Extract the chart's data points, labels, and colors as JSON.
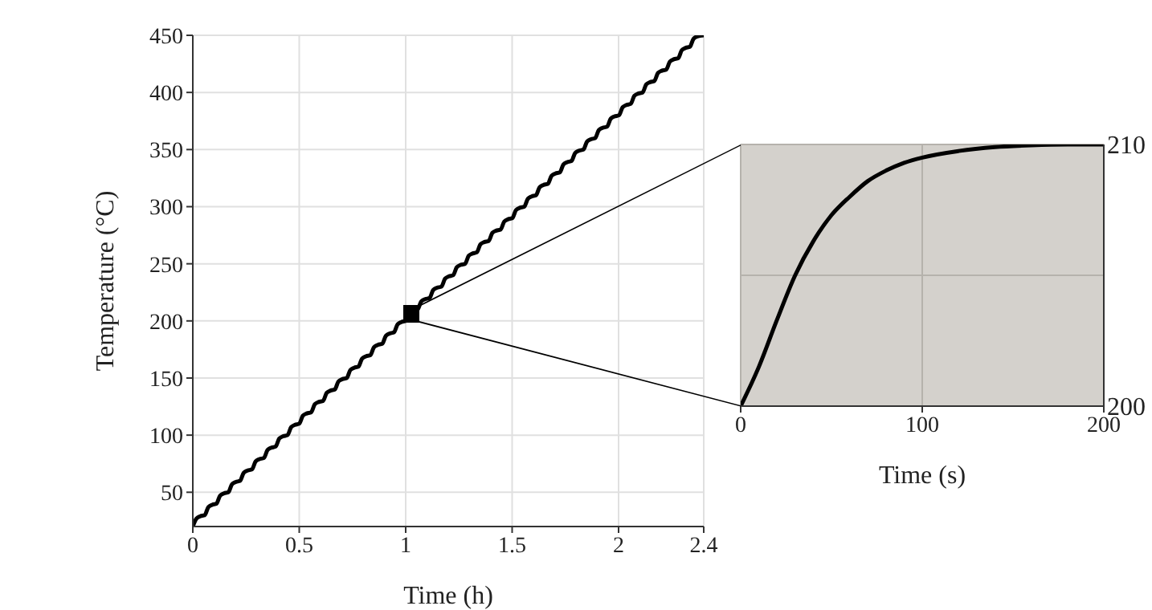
{
  "chart_data": [
    {
      "type": "line",
      "xlabel": "Time (h)",
      "ylabel": "Temperature (°C)",
      "xlim": [
        0,
        2.4
      ],
      "xticks": [
        0,
        0.5,
        1,
        1.5,
        2,
        2.4
      ],
      "ylim": [
        20,
        450
      ],
      "yticks": [
        50,
        100,
        150,
        200,
        250,
        300,
        350,
        400,
        450
      ],
      "grid": true,
      "series": [
        {
          "color": "#000000",
          "x": [
            0,
            0.017,
            0.035,
            0.056,
            0.073,
            0.091,
            0.111,
            0.128,
            0.146,
            0.167,
            0.184,
            0.202,
            0.222,
            0.239,
            0.257,
            0.278,
            0.295,
            0.313,
            0.334,
            0.351,
            0.369,
            0.389,
            0.406,
            0.424,
            0.445,
            0.462,
            0.48,
            0.5,
            0.517,
            0.535,
            0.556,
            0.573,
            0.591,
            0.612,
            0.629,
            0.647,
            0.667,
            0.684,
            0.702,
            0.723,
            0.74,
            0.758,
            0.778,
            0.795,
            0.813,
            0.834,
            0.851,
            0.869,
            0.89,
            0.907,
            0.925,
            0.945,
            0.962,
            0.98,
            1.001,
            1.018,
            1.036,
            1.056,
            1.073,
            1.091,
            1.112,
            1.129,
            1.147,
            1.168,
            1.185,
            1.203,
            1.223,
            1.24,
            1.258,
            1.279,
            1.296,
            1.314,
            1.334,
            1.351,
            1.369,
            1.39,
            1.407,
            1.425,
            1.446,
            1.463,
            1.481,
            1.501,
            1.518,
            1.536,
            1.557,
            1.574,
            1.592,
            1.612,
            1.629,
            1.647,
            1.668,
            1.685,
            1.703,
            1.724,
            1.741,
            1.759,
            1.779,
            1.796,
            1.814,
            1.835,
            1.852,
            1.87,
            1.89,
            1.907,
            1.925,
            1.946,
            1.963,
            1.981,
            2.002,
            2.019,
            2.037,
            2.057,
            2.074,
            2.092,
            2.113,
            2.13,
            2.148,
            2.168,
            2.185,
            2.203,
            2.224,
            2.241,
            2.259,
            2.28,
            2.297,
            2.315,
            2.335,
            2.352,
            2.37,
            2.4
          ],
          "values": [
            20,
            27,
            29,
            30,
            37,
            39,
            40,
            47,
            49,
            50,
            57,
            59,
            60,
            67,
            69,
            70,
            77,
            79,
            80,
            87,
            89,
            90,
            97,
            99,
            100,
            107,
            109,
            110,
            117,
            119,
            120,
            127,
            129,
            130,
            137,
            139,
            140,
            147,
            149,
            150,
            157,
            159,
            160,
            167,
            169,
            170,
            177,
            179,
            180,
            187,
            189,
            190,
            197,
            199,
            200,
            207,
            209,
            210,
            217,
            219,
            220,
            227,
            229,
            230,
            237,
            239,
            240,
            247,
            249,
            250,
            257,
            259,
            260,
            267,
            269,
            270,
            277,
            279,
            280,
            287,
            289,
            290,
            297,
            299,
            300,
            307,
            309,
            310,
            317,
            319,
            320,
            327,
            329,
            330,
            337,
            339,
            340,
            347,
            349,
            350,
            357,
            359,
            360,
            367,
            369,
            370,
            377,
            379,
            380,
            387,
            389,
            390,
            397,
            399,
            400,
            407,
            409,
            410,
            417,
            419,
            420,
            427,
            429,
            430,
            437,
            439,
            440,
            447,
            449,
            450
          ]
        }
      ]
    },
    {
      "type": "line",
      "xlabel": "Time (s)",
      "xlim": [
        0,
        200
      ],
      "xticks": [
        0,
        100,
        200
      ],
      "y2lim": [
        200,
        210
      ],
      "y2ticks": [
        200,
        {
          "value": 205,
          "label": null
        },
        210
      ],
      "grid": true,
      "series": [
        {
          "color": "#000000",
          "axis": "y2",
          "x": [
            0,
            10,
            20,
            30,
            40,
            50,
            60,
            70,
            80,
            90,
            100,
            120,
            140,
            160,
            180,
            200
          ],
          "values": [
            200,
            201.5,
            203.3,
            205,
            206.3,
            207.3,
            208,
            208.6,
            209,
            209.3,
            209.5,
            209.75,
            209.9,
            209.97,
            210,
            210
          ]
        }
      ]
    }
  ]
}
